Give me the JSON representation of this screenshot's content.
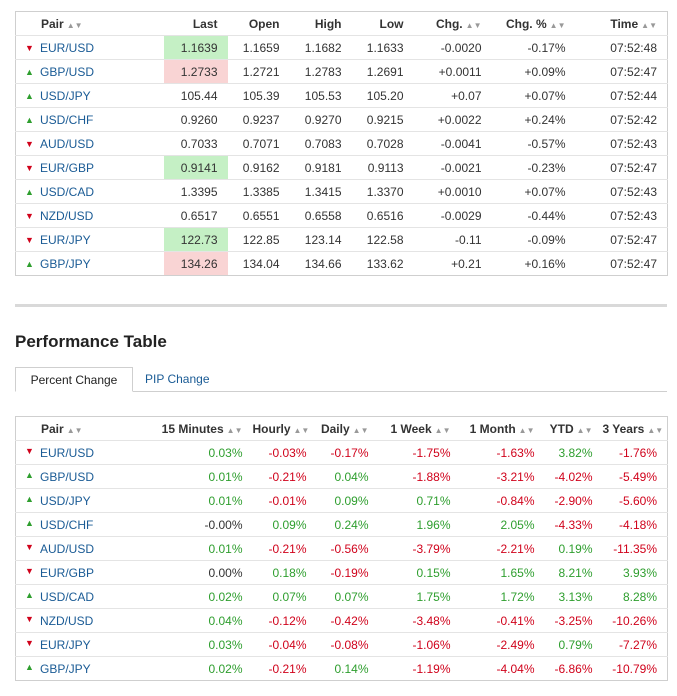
{
  "colors": {
    "up": "#2e9e2e",
    "down": "#d0021b",
    "link": "#1a5b95",
    "highlight_up": "#c5f0c5",
    "highlight_down": "#f9d4d4"
  },
  "quotes": {
    "headers": {
      "pair": "Pair",
      "last": "Last",
      "open": "Open",
      "high": "High",
      "low": "Low",
      "chg": "Chg.",
      "chg_pct": "Chg. %",
      "time": "Time"
    },
    "rows": [
      {
        "dir": "down",
        "pair": "EUR/USD",
        "last": "1.1639",
        "hl": "up",
        "open": "1.1659",
        "high": "1.1682",
        "low": "1.1633",
        "chg": "-0.0020",
        "chg_pct": "-0.17%",
        "time": "07:52:48"
      },
      {
        "dir": "up",
        "pair": "GBP/USD",
        "last": "1.2733",
        "hl": "down",
        "open": "1.2721",
        "high": "1.2783",
        "low": "1.2691",
        "chg": "+0.0011",
        "chg_pct": "+0.09%",
        "time": "07:52:47"
      },
      {
        "dir": "up",
        "pair": "USD/JPY",
        "last": "105.44",
        "hl": "",
        "open": "105.39",
        "high": "105.53",
        "low": "105.20",
        "chg": "+0.07",
        "chg_pct": "+0.07%",
        "time": "07:52:44"
      },
      {
        "dir": "up",
        "pair": "USD/CHF",
        "last": "0.9260",
        "hl": "",
        "open": "0.9237",
        "high": "0.9270",
        "low": "0.9215",
        "chg": "+0.0022",
        "chg_pct": "+0.24%",
        "time": "07:52:42"
      },
      {
        "dir": "down",
        "pair": "AUD/USD",
        "last": "0.7033",
        "hl": "",
        "open": "0.7071",
        "high": "0.7083",
        "low": "0.7028",
        "chg": "-0.0041",
        "chg_pct": "-0.57%",
        "time": "07:52:43"
      },
      {
        "dir": "down",
        "pair": "EUR/GBP",
        "last": "0.9141",
        "hl": "up",
        "open": "0.9162",
        "high": "0.9181",
        "low": "0.9113",
        "chg": "-0.0021",
        "chg_pct": "-0.23%",
        "time": "07:52:47"
      },
      {
        "dir": "up",
        "pair": "USD/CAD",
        "last": "1.3395",
        "hl": "",
        "open": "1.3385",
        "high": "1.3415",
        "low": "1.3370",
        "chg": "+0.0010",
        "chg_pct": "+0.07%",
        "time": "07:52:43"
      },
      {
        "dir": "down",
        "pair": "NZD/USD",
        "last": "0.6517",
        "hl": "",
        "open": "0.6551",
        "high": "0.6558",
        "low": "0.6516",
        "chg": "-0.0029",
        "chg_pct": "-0.44%",
        "time": "07:52:43"
      },
      {
        "dir": "down",
        "pair": "EUR/JPY",
        "last": "122.73",
        "hl": "up",
        "open": "122.85",
        "high": "123.14",
        "low": "122.58",
        "chg": "-0.11",
        "chg_pct": "-0.09%",
        "time": "07:52:47"
      },
      {
        "dir": "up",
        "pair": "GBP/JPY",
        "last": "134.26",
        "hl": "down",
        "open": "134.04",
        "high": "134.66",
        "low": "133.62",
        "chg": "+0.21",
        "chg_pct": "+0.16%",
        "time": "07:52:47"
      }
    ]
  },
  "performance": {
    "title": "Performance Table",
    "tabs": [
      {
        "label": "Percent Change",
        "active": true
      },
      {
        "label": "PIP Change",
        "active": false
      }
    ],
    "headers": {
      "pair": "Pair",
      "m15": "15 Minutes",
      "hourly": "Hourly",
      "daily": "Daily",
      "week": "1 Week",
      "month": "1 Month",
      "ytd": "YTD",
      "years3": "3 Years"
    },
    "rows": [
      {
        "dir": "down",
        "pair": "EUR/USD",
        "m15": "0.03%",
        "hourly": "-0.03%",
        "daily": "-0.17%",
        "week": "-1.75%",
        "month": "-1.63%",
        "ytd": "3.82%",
        "years3": "-1.76%"
      },
      {
        "dir": "up",
        "pair": "GBP/USD",
        "m15": "0.01%",
        "hourly": "-0.21%",
        "daily": "0.04%",
        "week": "-1.88%",
        "month": "-3.21%",
        "ytd": "-4.02%",
        "years3": "-5.49%"
      },
      {
        "dir": "up",
        "pair": "USD/JPY",
        "m15": "0.01%",
        "hourly": "-0.01%",
        "daily": "0.09%",
        "week": "0.71%",
        "month": "-0.84%",
        "ytd": "-2.90%",
        "years3": "-5.60%"
      },
      {
        "dir": "up",
        "pair": "USD/CHF",
        "m15": "-0.00%",
        "hourly": "0.09%",
        "daily": "0.24%",
        "week": "1.96%",
        "month": "2.05%",
        "ytd": "-4.33%",
        "years3": "-4.18%"
      },
      {
        "dir": "down",
        "pair": "AUD/USD",
        "m15": "0.01%",
        "hourly": "-0.21%",
        "daily": "-0.56%",
        "week": "-3.79%",
        "month": "-2.21%",
        "ytd": "0.19%",
        "years3": "-11.35%"
      },
      {
        "dir": "down",
        "pair": "EUR/GBP",
        "m15": "0.00%",
        "hourly": "0.18%",
        "daily": "-0.19%",
        "week": "0.15%",
        "month": "1.65%",
        "ytd": "8.21%",
        "years3": "3.93%"
      },
      {
        "dir": "up",
        "pair": "USD/CAD",
        "m15": "0.02%",
        "hourly": "0.07%",
        "daily": "0.07%",
        "week": "1.75%",
        "month": "1.72%",
        "ytd": "3.13%",
        "years3": "8.28%"
      },
      {
        "dir": "down",
        "pair": "NZD/USD",
        "m15": "0.04%",
        "hourly": "-0.12%",
        "daily": "-0.42%",
        "week": "-3.48%",
        "month": "-0.41%",
        "ytd": "-3.25%",
        "years3": "-10.26%"
      },
      {
        "dir": "down",
        "pair": "EUR/JPY",
        "m15": "0.03%",
        "hourly": "-0.04%",
        "daily": "-0.08%",
        "week": "-1.06%",
        "month": "-2.49%",
        "ytd": "0.79%",
        "years3": "-7.27%"
      },
      {
        "dir": "up",
        "pair": "GBP/JPY",
        "m15": "0.02%",
        "hourly": "-0.21%",
        "daily": "0.14%",
        "week": "-1.19%",
        "month": "-4.04%",
        "ytd": "-6.86%",
        "years3": "-10.79%"
      }
    ]
  }
}
